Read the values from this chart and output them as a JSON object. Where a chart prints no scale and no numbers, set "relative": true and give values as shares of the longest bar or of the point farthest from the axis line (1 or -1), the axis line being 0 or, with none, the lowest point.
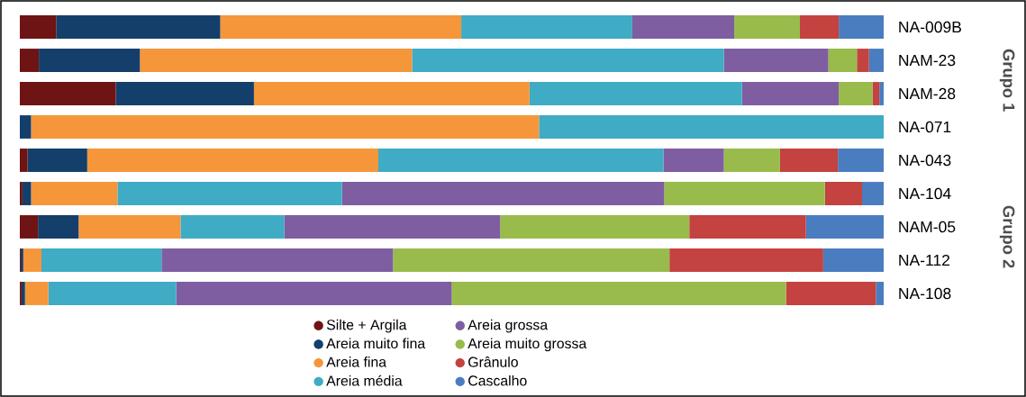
{
  "chart_data": {
    "type": "bar",
    "orientation": "horizontal",
    "stacked": true,
    "relative": true,
    "legend": "bottom",
    "categories": [
      "NA-009B",
      "NAM-23",
      "NAM-28",
      "NA-071",
      "NA-043",
      "NA-104",
      "NAM-05",
      "NA-112",
      "NA-108"
    ],
    "annotations": [
      "Grupo 1",
      "Grupo 2"
    ],
    "series": [
      {
        "name": "Silte + Argila",
        "color": "#6e1414",
        "values": [
          0.042,
          0.022,
          0.111,
          0,
          0.009,
          0.003,
          0.021,
          0.001,
          0.002
        ]
      },
      {
        "name": "Areia muito fina",
        "color": "#143f6b",
        "values": [
          0.19,
          0.117,
          0.16,
          0.013,
          0.069,
          0.01,
          0.047,
          0.003,
          0.004
        ]
      },
      {
        "name": "Areia fina",
        "color": "#f5963a",
        "values": [
          0.279,
          0.315,
          0.319,
          0.588,
          0.337,
          0.1,
          0.118,
          0.021,
          0.027
        ]
      },
      {
        "name": "Areia média",
        "color": "#3fabc4",
        "values": [
          0.198,
          0.361,
          0.246,
          0.399,
          0.33,
          0.26,
          0.12,
          0.139,
          0.148
        ]
      },
      {
        "name": "Areia grossa",
        "color": "#7e5ea0",
        "values": [
          0.118,
          0.121,
          0.112,
          0,
          0.07,
          0.373,
          0.25,
          0.268,
          0.319
        ]
      },
      {
        "name": "Areia muito grossa",
        "color": "#98bb4c",
        "values": [
          0.076,
          0.033,
          0.039,
          0,
          0.065,
          0.186,
          0.219,
          0.32,
          0.387
        ]
      },
      {
        "name": "Grânulo",
        "color": "#c4423f",
        "values": [
          0.045,
          0.014,
          0.008,
          0,
          0.067,
          0.043,
          0.135,
          0.178,
          0.104
        ]
      },
      {
        "name": "Cascalho",
        "color": "#4a7cc0",
        "values": [
          0.052,
          0.017,
          0.005,
          0,
          0.053,
          0.025,
          0.09,
          0.07,
          0.009
        ]
      }
    ]
  }
}
